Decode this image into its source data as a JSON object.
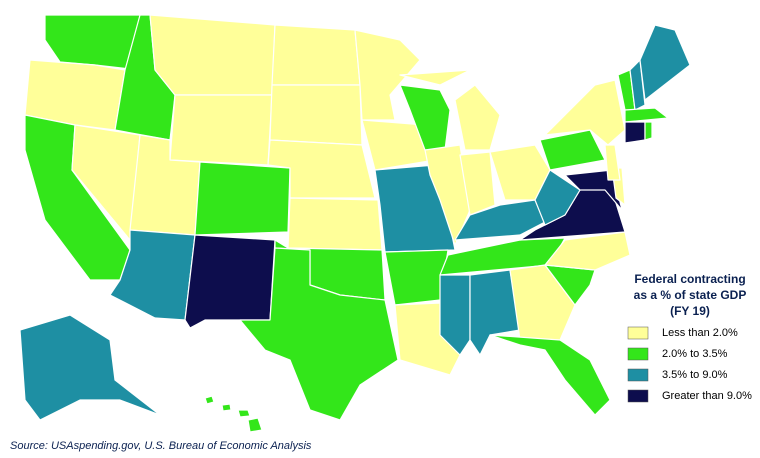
{
  "legend": {
    "title": [
      "Federal contracting",
      "as a % of state GDP",
      "(FY 19)"
    ],
    "items": [
      {
        "label": "Less than 2.0%",
        "color": "#ffff99"
      },
      {
        "label": "2.0% to 3.5%",
        "color": "#33e61a"
      },
      {
        "label": "3.5% to 9.0%",
        "color": "#1e8fa3"
      },
      {
        "label": "Greater than 9.0%",
        "color": "#0d0d4d"
      }
    ]
  },
  "source": "Source: USAspending.gov, U.S. Bureau of Economic Analysis"
}
